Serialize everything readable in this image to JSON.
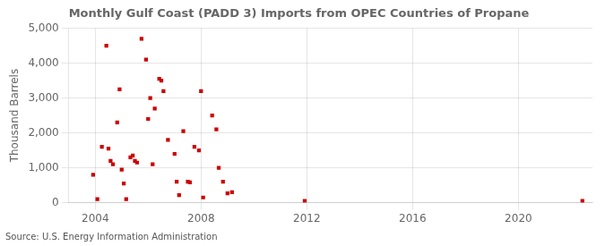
{
  "chart_data": {
    "type": "scatter",
    "title": "Monthly Gulf Coast (PADD 3) Imports from OPEC Countries of Propane",
    "ylabel": "Thousand Barrels",
    "annotations": [
      "Source: U.S. Energy Information Administration"
    ],
    "color": "#cc0000",
    "marker": "square",
    "grid": true,
    "xlim": [
      2003.0,
      2022.8
    ],
    "xticks": [
      2004,
      2008,
      2012,
      2016,
      2020
    ],
    "ylim": [
      0,
      5000
    ],
    "yticks": [
      0,
      {
        "value": 1000,
        "label": "1,000"
      },
      {
        "value": 2000,
        "label": "2,000"
      },
      {
        "value": 3000,
        "label": "3,000"
      },
      {
        "value": 4000,
        "label": "4,000"
      },
      {
        "value": 5000,
        "label": "5,000"
      }
    ],
    "x": [
      2003.92,
      2004.08,
      2004.25,
      2004.42,
      2004.5,
      2004.58,
      2004.67,
      2004.83,
      2004.92,
      2005.0,
      2005.08,
      2005.17,
      2005.33,
      2005.42,
      2005.5,
      2005.58,
      2005.75,
      2005.92,
      2006.0,
      2006.08,
      2006.17,
      2006.25,
      2006.42,
      2006.5,
      2006.58,
      2006.75,
      2007.0,
      2007.08,
      2007.17,
      2007.33,
      2007.5,
      2007.58,
      2007.75,
      2007.92,
      2008.0,
      2008.08,
      2008.42,
      2008.58,
      2008.67,
      2008.83,
      2009.0,
      2009.17,
      2011.92,
      2022.42
    ],
    "values": [
      800,
      100,
      1600,
      4500,
      1550,
      1200,
      1100,
      2300,
      3250,
      950,
      550,
      100,
      1300,
      1350,
      1200,
      1150,
      4700,
      4100,
      2400,
      3000,
      1100,
      2700,
      3550,
      3500,
      3200,
      1800,
      1400,
      600,
      220,
      2050,
      600,
      580,
      1600,
      1500,
      3200,
      150,
      2500,
      2100,
      1000,
      600,
      270,
      300,
      50,
      50
    ]
  }
}
